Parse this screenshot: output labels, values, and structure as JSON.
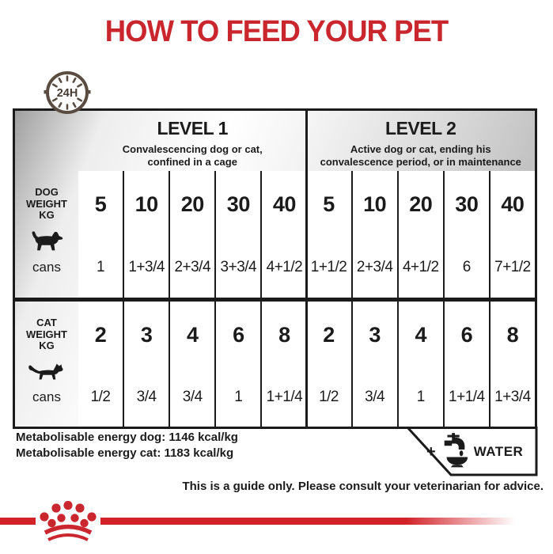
{
  "title": "HOW TO FEED YOUR PET",
  "clock": {
    "label": "24H"
  },
  "table": {
    "levels": [
      {
        "name": "LEVEL 1",
        "description": "Convalescencing dog or cat,\nconfined in a cage"
      },
      {
        "name": "LEVEL 2",
        "description": "Active dog or cat, ending his\nconvalescence period, or in maintenance"
      }
    ],
    "sections": [
      {
        "id": "dog",
        "label": "DOG\nWEIGHT\nKG",
        "cans_label": "cans",
        "icon": "dog-icon",
        "level1": {
          "weights": [
            "5",
            "10",
            "20",
            "30",
            "40"
          ],
          "cans": [
            "1",
            "1+3/4",
            "2+3/4",
            "3+3/4",
            "4+1/2"
          ]
        },
        "level2": {
          "weights": [
            "5",
            "10",
            "20",
            "30",
            "40"
          ],
          "cans": [
            "1+1/2",
            "2+3/4",
            "4+1/2",
            "6",
            "7+1/2"
          ]
        }
      },
      {
        "id": "cat",
        "label": "CAT\nWEIGHT\nKG",
        "cans_label": "cans",
        "icon": "cat-icon",
        "level1": {
          "weights": [
            "2",
            "3",
            "4",
            "6",
            "8"
          ],
          "cans": [
            "1/2",
            "3/4",
            "3/4",
            "1",
            "1+1/4"
          ]
        },
        "level2": {
          "weights": [
            "2",
            "3",
            "4",
            "6",
            "8"
          ],
          "cans": [
            "1/2",
            "3/4",
            "1",
            "1+1/4",
            "1+3/4"
          ]
        }
      }
    ]
  },
  "footer": {
    "energy_dog": "Metabolisable energy dog: 1146 kcal/kg",
    "energy_cat": "Metabolisable energy cat: 1183 kcal/kg",
    "water": {
      "plus": "+",
      "label": "WATER"
    },
    "guide_note": "This is a guide only. Please consult your veterinarian for advice."
  },
  "colors": {
    "accent_red": "#c9262d",
    "stripe_red": "#d2232a",
    "ink": "#1b1b1b",
    "clock_brown": "#5a4c41"
  }
}
